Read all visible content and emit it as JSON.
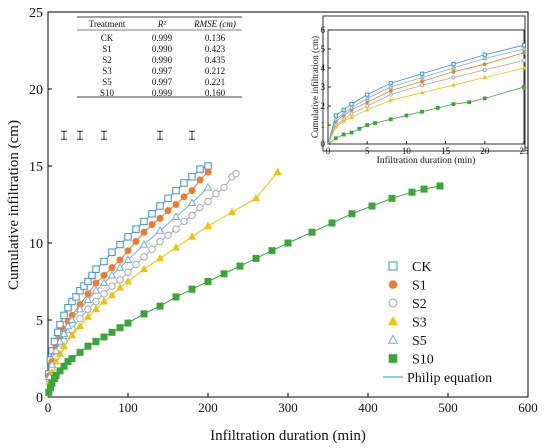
{
  "colors": {
    "CK": "#3b8fd9",
    "S1": "#f07b2a",
    "S2": "#a9a9a9",
    "S3": "#f5c200",
    "S5": "#6ab3e8",
    "S10": "#3aa63a",
    "philip": "#5aaae0"
  },
  "chart_data": [
    {
      "type": "scatter",
      "role": "main",
      "xlabel": "Infiltration duration (min)",
      "ylabel": "Cumulative infiltration (cm)",
      "xlim": [
        0,
        600
      ],
      "ylim": [
        0,
        25
      ],
      "xticks": [
        0,
        100,
        200,
        300,
        400,
        500,
        600
      ],
      "yticks": [
        0,
        5,
        10,
        15,
        20,
        25
      ],
      "grid": false,
      "legend_position": "bottom-right",
      "legend": [
        {
          "name": "CK",
          "marker": "open-square",
          "color": "#3b8fd9"
        },
        {
          "name": "S1",
          "marker": "filled-circle",
          "color": "#f07b2a"
        },
        {
          "name": "S2",
          "marker": "open-circle",
          "color": "#a9a9a9"
        },
        {
          "name": "S3",
          "marker": "filled-triangle",
          "color": "#f5c200"
        },
        {
          "name": "S5",
          "marker": "open-triangle",
          "color": "#6ab3e8"
        },
        {
          "name": "S10",
          "marker": "filled-square",
          "color": "#3aa63a"
        },
        {
          "name": "Philip equation",
          "marker": "line",
          "color": "#5aaae0"
        }
      ],
      "series": [
        {
          "name": "CK",
          "marker": "open-square",
          "color": "#3b8fd9",
          "x": [
            1,
            3,
            5,
            8,
            12,
            15,
            20,
            25,
            30,
            35,
            40,
            45,
            50,
            55,
            60,
            70,
            80,
            90,
            100,
            110,
            120,
            130,
            140,
            150,
            160,
            170,
            180,
            190,
            200
          ],
          "y": [
            1.5,
            2.4,
            3.0,
            3.6,
            4.2,
            4.7,
            5.3,
            5.8,
            6.2,
            6.5,
            6.9,
            7.2,
            7.5,
            7.9,
            8.3,
            8.8,
            9.4,
            9.9,
            10.4,
            10.9,
            11.4,
            11.9,
            12.4,
            12.9,
            13.4,
            13.9,
            14.3,
            14.8,
            15.0
          ],
          "errors": [
            [
              20,
              17
            ],
            [
              40,
              17
            ],
            [
              70,
              17
            ],
            [
              140,
              17
            ],
            [
              180,
              17
            ]
          ]
        },
        {
          "name": "S1",
          "marker": "filled-circle",
          "color": "#f07b2a",
          "x": [
            2,
            5,
            10,
            15,
            20,
            25,
            30,
            40,
            50,
            60,
            70,
            80,
            90,
            100,
            110,
            120,
            130,
            140,
            150,
            160,
            170,
            180,
            190,
            200
          ],
          "y": [
            1.4,
            2.3,
            3.2,
            3.8,
            4.4,
            4.9,
            5.3,
            6.0,
            6.7,
            7.4,
            7.9,
            8.4,
            8.9,
            9.5,
            10.1,
            10.7,
            11.2,
            11.6,
            12.1,
            12.5,
            13.0,
            13.4,
            14.1,
            14.6
          ]
        },
        {
          "name": "S2",
          "marker": "open-circle",
          "color": "#a9a9a9",
          "x": [
            2,
            5,
            10,
            15,
            20,
            25,
            30,
            40,
            50,
            60,
            70,
            80,
            90,
            100,
            110,
            120,
            130,
            140,
            150,
            160,
            170,
            180,
            190,
            200,
            210,
            220,
            230,
            235
          ],
          "y": [
            1.1,
            1.8,
            2.6,
            3.1,
            3.6,
            4.0,
            4.4,
            5.1,
            5.7,
            6.2,
            6.7,
            7.2,
            7.6,
            8.1,
            8.6,
            9.1,
            9.6,
            10.1,
            10.5,
            10.9,
            11.4,
            11.8,
            12.3,
            12.7,
            13.2,
            13.6,
            14.3,
            14.5
          ]
        },
        {
          "name": "S3",
          "marker": "filled-triangle",
          "color": "#f5c200",
          "x": [
            2,
            5,
            10,
            15,
            20,
            30,
            40,
            50,
            60,
            70,
            80,
            90,
            100,
            120,
            140,
            160,
            180,
            200,
            230,
            260,
            287
          ],
          "y": [
            1.0,
            1.6,
            2.3,
            2.8,
            3.3,
            4.0,
            4.6,
            5.2,
            5.7,
            6.2,
            6.6,
            7.1,
            7.5,
            8.3,
            9.0,
            9.7,
            10.4,
            11.1,
            12.0,
            12.9,
            14.6
          ]
        },
        {
          "name": "S5",
          "marker": "open-triangle",
          "color": "#6ab3e8",
          "x": [
            2,
            5,
            10,
            15,
            20,
            25,
            30,
            40,
            50,
            60,
            70,
            80,
            90,
            100,
            120,
            140,
            160,
            180,
            200
          ],
          "y": [
            1.3,
            2.1,
            3.0,
            3.6,
            4.1,
            4.6,
            5.0,
            5.7,
            6.3,
            6.9,
            7.4,
            7.9,
            8.4,
            8.9,
            9.9,
            10.8,
            11.7,
            12.6,
            13.6
          ]
        },
        {
          "name": "S10",
          "marker": "filled-square",
          "color": "#3aa63a",
          "x": [
            1,
            3,
            5,
            8,
            10,
            15,
            20,
            25,
            30,
            40,
            50,
            60,
            70,
            80,
            90,
            100,
            120,
            140,
            160,
            180,
            200,
            220,
            240,
            260,
            280,
            300,
            330,
            355,
            380,
            405,
            430,
            455,
            470,
            490
          ],
          "y": [
            0.3,
            0.6,
            0.9,
            1.2,
            1.4,
            1.7,
            2.0,
            2.3,
            2.5,
            2.9,
            3.3,
            3.6,
            3.9,
            4.2,
            4.5,
            4.8,
            5.4,
            5.9,
            6.5,
            7.0,
            7.5,
            8.0,
            8.5,
            9.0,
            9.5,
            10.0,
            10.7,
            11.3,
            11.9,
            12.4,
            12.9,
            13.3,
            13.5,
            13.7
          ]
        }
      ]
    },
    {
      "type": "scatter",
      "role": "inset",
      "xlabel": "Infiltration duration (min)",
      "ylabel": "Cumulative infiltration (cm)",
      "xlim": [
        0,
        25
      ],
      "ylim": [
        0,
        6
      ],
      "xticks": [
        0,
        5,
        10,
        15,
        20,
        25
      ],
      "yticks": [
        0,
        1,
        2,
        3,
        4,
        5,
        6
      ],
      "series": [
        {
          "name": "CK",
          "color": "#3b8fd9",
          "x": [
            1,
            2,
            3,
            5,
            8,
            12,
            16,
            20,
            25
          ],
          "y": [
            1.5,
            1.8,
            2.1,
            2.6,
            3.2,
            3.7,
            4.2,
            4.7,
            5.2
          ]
        },
        {
          "name": "S1",
          "color": "#f07b2a",
          "x": [
            1,
            2,
            3,
            5,
            8,
            12,
            16,
            20,
            25
          ],
          "y": [
            1.2,
            1.5,
            1.8,
            2.2,
            2.8,
            3.3,
            3.8,
            4.2,
            4.8
          ]
        },
        {
          "name": "S2",
          "color": "#a9a9a9",
          "x": [
            1,
            2,
            3,
            5,
            8,
            12,
            16,
            20,
            25
          ],
          "y": [
            1.0,
            1.3,
            1.6,
            2.0,
            2.6,
            3.1,
            3.5,
            3.9,
            4.4
          ]
        },
        {
          "name": "S3",
          "color": "#f5c200",
          "x": [
            1,
            2,
            3,
            5,
            8,
            12,
            16,
            20,
            25
          ],
          "y": [
            0.9,
            1.2,
            1.4,
            1.8,
            2.3,
            2.7,
            3.1,
            3.5,
            4.0
          ]
        },
        {
          "name": "S5",
          "color": "#6ab3e8",
          "x": [
            1,
            2,
            3,
            5,
            8,
            12,
            16,
            20,
            25
          ],
          "y": [
            1.3,
            1.6,
            1.9,
            2.4,
            3.0,
            3.5,
            4.0,
            4.5,
            5.0
          ]
        },
        {
          "name": "S10",
          "color": "#3aa63a",
          "x": [
            1,
            2,
            3,
            4,
            5,
            6,
            8,
            10,
            12,
            14,
            16,
            18,
            20,
            25
          ],
          "y": [
            0.3,
            0.5,
            0.6,
            0.8,
            1.0,
            1.1,
            1.3,
            1.5,
            1.7,
            1.9,
            2.1,
            2.2,
            2.4,
            3.0
          ]
        }
      ]
    },
    {
      "type": "table",
      "role": "fit-table",
      "columns": [
        "Treatment",
        "R²",
        "RMSE (cm)"
      ],
      "rows": [
        [
          "CK",
          "0.999",
          "0.136"
        ],
        [
          "S1",
          "0.990",
          "0.423"
        ],
        [
          "S2",
          "0.990",
          "0.435"
        ],
        [
          "S3",
          "0.997",
          "0.212"
        ],
        [
          "S5",
          "0.997",
          "0.221"
        ],
        [
          "S10",
          "0.999",
          "0.160"
        ]
      ]
    }
  ]
}
